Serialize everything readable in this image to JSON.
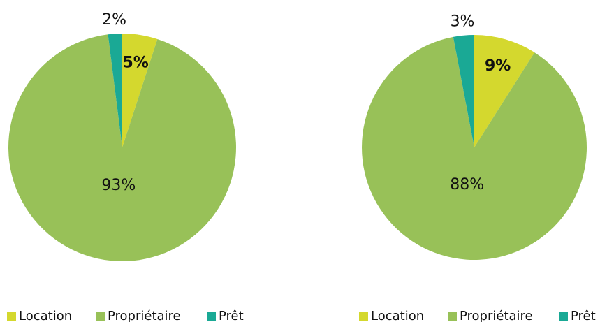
{
  "chart_data": [
    {
      "type": "pie",
      "categories": [
        "Location",
        "Propriétaire",
        "Prêt"
      ],
      "values": [
        5,
        93,
        2
      ],
      "value_labels": [
        "5%",
        "93%",
        "2%"
      ],
      "colors": [
        "#d4d82e",
        "#98c158",
        "#1aa995"
      ]
    },
    {
      "type": "pie",
      "categories": [
        "Location",
        "Propriétaire",
        "Prêt"
      ],
      "values": [
        9,
        88,
        3
      ],
      "value_labels": [
        "9%",
        "88%",
        "3%"
      ],
      "colors": [
        "#d4d82e",
        "#98c158",
        "#1aa995"
      ]
    }
  ]
}
